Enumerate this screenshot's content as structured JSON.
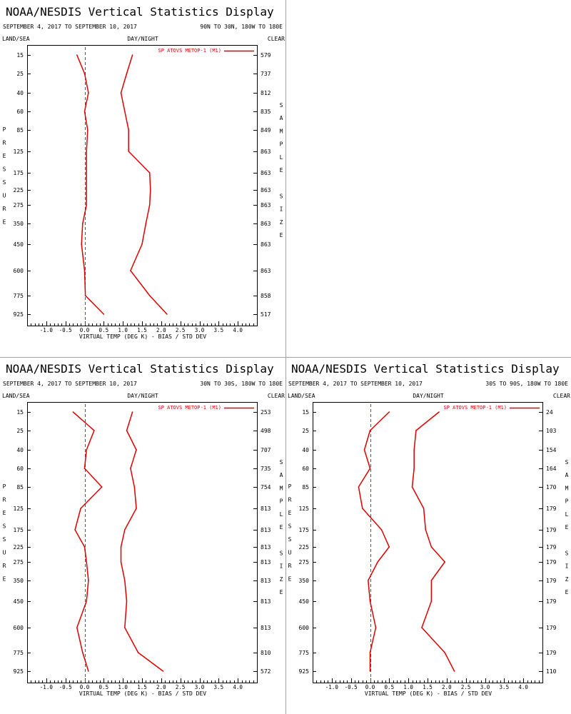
{
  "panel_common": {
    "title": "NOAA/NESDIS Vertical Statistics Display",
    "date_range": "SEPTEMBER 4, 2017 TO SEPTEMBER 10, 2017",
    "land_sea": "LAND/SEA",
    "day_night": "DAY/NIGHT",
    "clear": "CLEAR",
    "y_side_label": [
      "P",
      "R",
      "E",
      "S",
      "S",
      "U",
      "R",
      "E"
    ],
    "sample_side_label": [
      "S",
      "A",
      "M",
      "P",
      "L",
      "E",
      "",
      "S",
      "I",
      "Z",
      "E"
    ],
    "xlabel": "VIRTUAL TEMP (DEG K) - BIAS / STD DEV",
    "legend": "SP ATOVS METOP-1 (M1)",
    "line_color": "#dd0000",
    "zero_line_color": "#4a4aa8"
  },
  "chart_data": [
    {
      "type": "line",
      "region": "90N TO 30N, 180W TO 180E",
      "pressure_levels": [
        15,
        25,
        40,
        60,
        85,
        125,
        175,
        225,
        275,
        350,
        450,
        600,
        775,
        925
      ],
      "sample_size": [
        "579",
        "737",
        "812",
        "835",
        "849",
        "863",
        "863",
        "863",
        "863",
        "863",
        "863",
        "863",
        "858",
        "517"
      ],
      "x_ticks": [
        "-1.0",
        "-0.5",
        "0.0",
        "0.5",
        "1.0",
        "1.5",
        "2.0",
        "2.5",
        "3.0",
        "3.5",
        "4.0"
      ],
      "xlim": [
        -1.5,
        4.5
      ],
      "series": [
        {
          "name": "BIAS",
          "values": [
            -0.2,
            0.0,
            0.1,
            0.0,
            0.08,
            0.05,
            0.05,
            0.05,
            0.05,
            -0.05,
            -0.08,
            0.0,
            0.02,
            0.5
          ]
        },
        {
          "name": "STD DEV",
          "values": [
            1.25,
            1.1,
            0.95,
            1.05,
            1.15,
            1.15,
            1.7,
            1.72,
            1.7,
            1.6,
            1.5,
            1.2,
            1.7,
            2.15
          ]
        }
      ]
    },
    {
      "type": "line",
      "region": "30N TO 30S, 180W TO 180E",
      "pressure_levels": [
        15,
        25,
        40,
        60,
        85,
        125,
        175,
        225,
        275,
        350,
        450,
        600,
        775,
        925
      ],
      "sample_size": [
        "253",
        "498",
        "707",
        "735",
        "754",
        "813",
        "813",
        "813",
        "813",
        "813",
        "813",
        "813",
        "810",
        "572"
      ],
      "x_ticks": [
        "-1.0",
        "-0.5",
        "0.0",
        "0.5",
        "1.0",
        "1.5",
        "2.0",
        "2.5",
        "3.0",
        "3.5",
        "4.0"
      ],
      "xlim": [
        -1.5,
        4.5
      ],
      "series": [
        {
          "name": "BIAS",
          "values": [
            -0.3,
            0.25,
            0.05,
            0.0,
            0.45,
            -0.1,
            -0.25,
            0.0,
            0.05,
            0.1,
            0.05,
            -0.2,
            -0.05,
            0.1
          ]
        },
        {
          "name": "STD DEV",
          "values": [
            1.25,
            1.1,
            1.35,
            1.2,
            1.3,
            1.35,
            1.05,
            0.95,
            0.95,
            1.05,
            1.1,
            1.05,
            1.4,
            2.05
          ]
        }
      ]
    },
    {
      "type": "line",
      "region": "30S TO 90S, 180W TO 180E",
      "pressure_levels": [
        15,
        25,
        40,
        60,
        85,
        125,
        175,
        225,
        275,
        350,
        450,
        600,
        775,
        925
      ],
      "sample_size": [
        "24",
        "103",
        "154",
        "164",
        "170",
        "179",
        "179",
        "179",
        "179",
        "179",
        "179",
        "179",
        "179",
        "110"
      ],
      "x_ticks": [
        "-1.0",
        "-0.5",
        "0.0",
        "0.5",
        "1.0",
        "1.5",
        "2.0",
        "2.5",
        "3.0",
        "3.5",
        "4.0"
      ],
      "xlim": [
        -1.5,
        4.5
      ],
      "series": [
        {
          "name": "BIAS",
          "values": [
            0.5,
            0.0,
            -0.15,
            0.0,
            -0.3,
            -0.2,
            0.3,
            0.5,
            0.2,
            -0.05,
            0.0,
            0.15,
            0.0,
            0.0
          ]
        },
        {
          "name": "STD DEV",
          "values": [
            1.8,
            1.2,
            1.15,
            1.15,
            1.1,
            1.4,
            1.45,
            1.6,
            1.95,
            1.6,
            1.6,
            1.35,
            1.95,
            2.2
          ]
        }
      ]
    }
  ]
}
